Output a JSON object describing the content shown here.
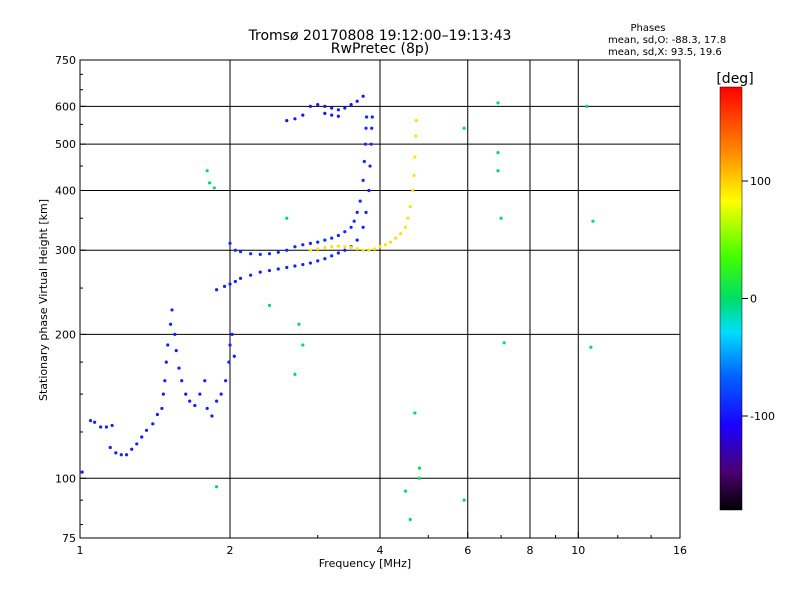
{
  "header": {
    "title_line1": "Tromsø 20170808 19:12:00–19:13:43",
    "title_line2": "RwPretec (8p)",
    "phases_label": "Phases",
    "phase_o_stats": "mean, sd,O: -88.3, 17.8",
    "phase_x_stats": "mean, sd,X:  93.5, 19.6"
  },
  "colorbar": {
    "label": "[deg]",
    "range": [
      -180,
      180
    ],
    "ticks": [
      {
        "value": 100,
        "label": "100"
      },
      {
        "value": 0,
        "label": "0"
      },
      {
        "value": -100,
        "label": "-100"
      }
    ]
  },
  "chart_data": {
    "type": "scatter",
    "title": "Tromsø 20170808 19:12:00–19:13:43",
    "subtitle": "RwPretec (8p)",
    "xlabel": "Frequency [MHz]",
    "ylabel": "Stationary phase Virtual Height [km]",
    "xscale": "log",
    "yscale": "log",
    "xlim": [
      1,
      16
    ],
    "ylim": [
      75,
      750
    ],
    "grid": true,
    "x_ticks": [
      {
        "value": 1,
        "label": "1"
      },
      {
        "value": 2,
        "label": "2"
      },
      {
        "value": 4,
        "label": "4"
      },
      {
        "value": 6,
        "label": "6"
      },
      {
        "value": 8,
        "label": "8"
      },
      {
        "value": 10,
        "label": "10"
      },
      {
        "value": 16,
        "label": "16"
      }
    ],
    "y_ticks": [
      {
        "value": 75,
        "label": "75"
      },
      {
        "value": 100,
        "label": "100"
      },
      {
        "value": 200,
        "label": "200"
      },
      {
        "value": 300,
        "label": "300"
      },
      {
        "value": 400,
        "label": "400"
      },
      {
        "value": 500,
        "label": "500"
      },
      {
        "value": 600,
        "label": "600"
      },
      {
        "value": 750,
        "label": "750"
      }
    ],
    "x_gridlines": [
      2,
      4,
      6,
      8,
      10
    ],
    "y_gridlines": [
      100,
      200,
      300,
      400,
      500,
      600
    ],
    "color_scale": "rainbow (phase, deg)",
    "series": [
      {
        "trace": "low-frequency echoes",
        "phase": -95,
        "points": [
          [
            1.01,
            103
          ],
          [
            1.05,
            132
          ],
          [
            1.07,
            131
          ],
          [
            1.1,
            128
          ],
          [
            1.13,
            128
          ],
          [
            1.16,
            129
          ],
          [
            1.15,
            116
          ],
          [
            1.18,
            113
          ],
          [
            1.21,
            112
          ],
          [
            1.24,
            112
          ],
          [
            1.27,
            115
          ],
          [
            1.3,
            118
          ],
          [
            1.33,
            122
          ],
          [
            1.36,
            126
          ],
          [
            1.4,
            130
          ],
          [
            1.43,
            136
          ],
          [
            1.46,
            140
          ],
          [
            1.47,
            150
          ],
          [
            1.48,
            160
          ],
          [
            1.49,
            175
          ],
          [
            1.5,
            190
          ],
          [
            1.52,
            210
          ],
          [
            1.53,
            225
          ],
          [
            1.55,
            200
          ],
          [
            1.56,
            185
          ],
          [
            1.58,
            170
          ],
          [
            1.6,
            160
          ],
          [
            1.63,
            150
          ],
          [
            1.66,
            145
          ],
          [
            1.7,
            142
          ],
          [
            1.74,
            150
          ],
          [
            1.78,
            160
          ],
          [
            1.8,
            140
          ],
          [
            1.84,
            135
          ],
          [
            1.88,
            145
          ],
          [
            1.92,
            150
          ],
          [
            1.96,
            160
          ],
          [
            1.99,
            175
          ],
          [
            2.0,
            190
          ],
          [
            2.02,
            200
          ],
          [
            2.04,
            180
          ]
        ]
      },
      {
        "trace": "O-mode F trace",
        "phase": -95,
        "points": [
          [
            1.88,
            248
          ],
          [
            1.95,
            252
          ],
          [
            2.0,
            255
          ],
          [
            2.05,
            258
          ],
          [
            2.1,
            262
          ],
          [
            2.2,
            266
          ],
          [
            2.3,
            270
          ],
          [
            2.4,
            272
          ],
          [
            2.5,
            274
          ],
          [
            2.6,
            276
          ],
          [
            2.7,
            278
          ],
          [
            2.8,
            280
          ],
          [
            2.9,
            282
          ],
          [
            3.0,
            285
          ],
          [
            3.1,
            288
          ],
          [
            3.2,
            292
          ],
          [
            3.3,
            296
          ],
          [
            3.4,
            300
          ],
          [
            3.5,
            305
          ],
          [
            3.6,
            315
          ],
          [
            3.7,
            335
          ],
          [
            3.75,
            360
          ],
          [
            3.8,
            400
          ],
          [
            3.82,
            450
          ],
          [
            3.84,
            500
          ],
          [
            3.85,
            540
          ],
          [
            3.86,
            570
          ]
        ]
      },
      {
        "trace": "O-mode F upper branch",
        "phase": -90,
        "points": [
          [
            2.0,
            310
          ],
          [
            2.05,
            300
          ],
          [
            2.1,
            298
          ],
          [
            2.2,
            295
          ],
          [
            2.3,
            294
          ],
          [
            2.4,
            295
          ],
          [
            2.5,
            297
          ],
          [
            2.6,
            300
          ],
          [
            2.7,
            305
          ],
          [
            2.8,
            308
          ],
          [
            2.9,
            310
          ],
          [
            3.0,
            312
          ],
          [
            3.1,
            315
          ],
          [
            3.2,
            318
          ],
          [
            3.3,
            322
          ],
          [
            3.4,
            328
          ],
          [
            3.5,
            335
          ],
          [
            3.55,
            345
          ],
          [
            3.6,
            360
          ],
          [
            3.65,
            380
          ],
          [
            3.7,
            420
          ],
          [
            3.72,
            460
          ],
          [
            3.74,
            500
          ],
          [
            3.75,
            540
          ],
          [
            3.76,
            570
          ]
        ]
      },
      {
        "trace": "X-mode F trace",
        "phase": 93,
        "points": [
          [
            2.9,
            300
          ],
          [
            3.0,
            302
          ],
          [
            3.1,
            304
          ],
          [
            3.2,
            305
          ],
          [
            3.3,
            306
          ],
          [
            3.4,
            305
          ],
          [
            3.5,
            304
          ],
          [
            3.6,
            302
          ],
          [
            3.7,
            300
          ],
          [
            3.8,
            300
          ],
          [
            3.9,
            302
          ],
          [
            4.0,
            305
          ],
          [
            4.1,
            308
          ],
          [
            4.2,
            312
          ],
          [
            4.3,
            318
          ],
          [
            4.4,
            325
          ],
          [
            4.5,
            335
          ],
          [
            4.55,
            350
          ],
          [
            4.6,
            370
          ],
          [
            4.65,
            400
          ],
          [
            4.68,
            430
          ],
          [
            4.7,
            470
          ],
          [
            4.72,
            520
          ],
          [
            4.73,
            560
          ]
        ]
      },
      {
        "trace": "high-altitude echoes",
        "phase": -100,
        "points": [
          [
            2.6,
            560
          ],
          [
            2.7,
            565
          ],
          [
            2.8,
            575
          ],
          [
            2.9,
            600
          ],
          [
            3.0,
            605
          ],
          [
            3.1,
            600
          ],
          [
            3.2,
            595
          ],
          [
            3.3,
            590
          ],
          [
            3.4,
            595
          ],
          [
            3.5,
            605
          ],
          [
            3.6,
            615
          ],
          [
            3.7,
            630
          ],
          [
            3.1,
            580
          ],
          [
            3.2,
            575
          ],
          [
            3.3,
            572
          ]
        ]
      },
      {
        "trace": "scattered points",
        "phase": 0,
        "points": [
          [
            1.82,
            415
          ],
          [
            1.86,
            405
          ],
          [
            1.8,
            440
          ],
          [
            2.4,
            230
          ],
          [
            2.6,
            350
          ],
          [
            2.75,
            210
          ],
          [
            2.8,
            190
          ],
          [
            2.7,
            165
          ],
          [
            1.88,
            96
          ],
          [
            4.8,
            105
          ],
          [
            4.8,
            100
          ],
          [
            4.7,
            137
          ],
          [
            4.6,
            82
          ],
          [
            4.5,
            94
          ],
          [
            5.9,
            90
          ],
          [
            6.9,
            610
          ],
          [
            6.9,
            480
          ],
          [
            6.9,
            440
          ],
          [
            7.0,
            350
          ],
          [
            7.1,
            192
          ],
          [
            10.4,
            600
          ],
          [
            10.7,
            345
          ],
          [
            10.6,
            188
          ],
          [
            5.9,
            540
          ]
        ]
      }
    ]
  }
}
